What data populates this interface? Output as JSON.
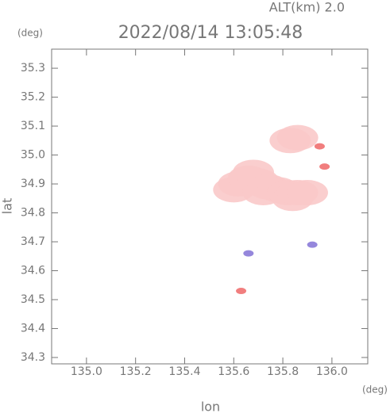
{
  "chart_data": {
    "type": "scatter",
    "title": "2022/08/14 13:05:48",
    "subtitle": "ALT(km) 2.0",
    "x_label": "lon",
    "y_label": "lat",
    "x_unit": "(deg)",
    "y_unit": "(deg)",
    "xlim": [
      134.858,
      136.146
    ],
    "ylim": [
      34.278,
      35.366
    ],
    "xticks": [
      {
        "value": 135.0,
        "label": "135.0"
      },
      135.2,
      135.4,
      135.6,
      135.8,
      {
        "value": 136.0,
        "label": "136.0"
      }
    ],
    "yticks": [
      34.3,
      34.4,
      34.5,
      34.6,
      34.7,
      34.8,
      34.9,
      {
        "value": 35.0,
        "label": "35.0"
      },
      35.1,
      35.2,
      35.3
    ],
    "series": [
      {
        "color": "#f9c9c9",
        "x": [
          135.6,
          135.62,
          135.66,
          135.68,
          135.7,
          135.72,
          135.74,
          135.78,
          135.82,
          135.84,
          135.86,
          135.9,
          135.83,
          135.86
        ],
        "y": [
          34.88,
          34.9,
          34.92,
          34.94,
          34.91,
          34.87,
          34.89,
          34.88,
          34.87,
          34.85,
          34.87,
          34.87,
          35.05,
          35.06
        ]
      },
      {
        "color": "#f07070",
        "x": [
          135.95,
          135.97,
          135.63
        ],
        "y": [
          35.03,
          34.96,
          34.53
        ]
      },
      {
        "color": "#8a7ad8",
        "x": [
          135.66,
          135.92
        ],
        "y": [
          34.66,
          34.69
        ]
      }
    ]
  }
}
